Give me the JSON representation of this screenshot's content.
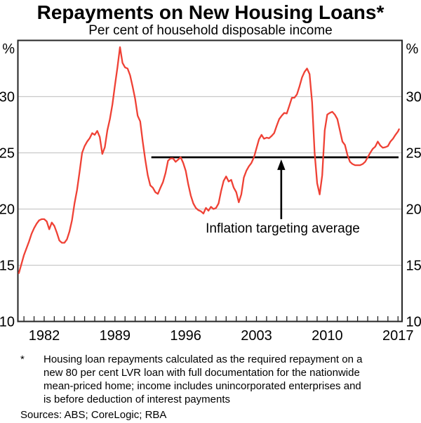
{
  "chart_data": {
    "type": "line",
    "title": "Repayments on New Housing Loans*",
    "subtitle": "Per cent of household disposable income",
    "unit_label": "%",
    "ylim": [
      10,
      35
    ],
    "xlim": [
      1979.4,
      2017.4
    ],
    "y_ticks": [
      10,
      15,
      20,
      25,
      30
    ],
    "gridlines": [
      15,
      20,
      25,
      30
    ],
    "x_labeled_years": [
      1982,
      1989,
      1996,
      2003,
      2010,
      2017
    ],
    "x_minor_tick_start": 1980,
    "x_minor_tick_end": 2017,
    "grid_on": true,
    "legend_position": "none",
    "series": [
      {
        "name": "Repayments on new housing loans",
        "color": "#ef4135",
        "points": [
          [
            1979.5,
            14.3
          ],
          [
            1979.75,
            15.1
          ],
          [
            1980,
            15.9
          ],
          [
            1980.25,
            16.5
          ],
          [
            1980.5,
            17.1
          ],
          [
            1980.75,
            17.8
          ],
          [
            1981,
            18.3
          ],
          [
            1981.25,
            18.7
          ],
          [
            1981.5,
            19.0
          ],
          [
            1981.75,
            19.1
          ],
          [
            1982,
            19.1
          ],
          [
            1982.25,
            18.9
          ],
          [
            1982.5,
            18.2
          ],
          [
            1982.75,
            18.8
          ],
          [
            1983,
            18.5
          ],
          [
            1983.25,
            17.9
          ],
          [
            1983.5,
            17.2
          ],
          [
            1983.75,
            17.0
          ],
          [
            1984,
            17.0
          ],
          [
            1984.25,
            17.3
          ],
          [
            1984.5,
            18.0
          ],
          [
            1984.75,
            19.0
          ],
          [
            1985,
            20.5
          ],
          [
            1985.25,
            21.7
          ],
          [
            1985.5,
            23.3
          ],
          [
            1985.75,
            25.0
          ],
          [
            1986,
            25.6
          ],
          [
            1986.25,
            26.0
          ],
          [
            1986.5,
            26.3
          ],
          [
            1986.75,
            26.75
          ],
          [
            1987,
            26.6
          ],
          [
            1987.25,
            26.95
          ],
          [
            1987.5,
            26.4
          ],
          [
            1987.75,
            24.9
          ],
          [
            1988,
            25.5
          ],
          [
            1988.25,
            27.0
          ],
          [
            1988.5,
            28.0
          ],
          [
            1988.75,
            29.3
          ],
          [
            1989,
            31.0
          ],
          [
            1989.25,
            32.6
          ],
          [
            1989.5,
            34.4
          ],
          [
            1989.75,
            33.0
          ],
          [
            1990,
            32.6
          ],
          [
            1990.25,
            32.5
          ],
          [
            1990.5,
            31.9
          ],
          [
            1990.75,
            30.9
          ],
          [
            1991,
            29.8
          ],
          [
            1991.25,
            28.3
          ],
          [
            1991.5,
            27.8
          ],
          [
            1991.75,
            26.0
          ],
          [
            1992,
            24.4
          ],
          [
            1992.25,
            23.0
          ],
          [
            1992.5,
            22.1
          ],
          [
            1992.75,
            21.9
          ],
          [
            1993,
            21.5
          ],
          [
            1993.25,
            21.35
          ],
          [
            1993.5,
            21.9
          ],
          [
            1993.75,
            22.4
          ],
          [
            1994,
            23.2
          ],
          [
            1994.25,
            24.3
          ],
          [
            1994.5,
            24.5
          ],
          [
            1994.75,
            24.5
          ],
          [
            1995,
            24.2
          ],
          [
            1995.25,
            24.4
          ],
          [
            1995.5,
            24.6
          ],
          [
            1995.75,
            24.1
          ],
          [
            1996,
            23.4
          ],
          [
            1996.25,
            22.2
          ],
          [
            1996.5,
            21.2
          ],
          [
            1996.75,
            20.5
          ],
          [
            1997,
            20.1
          ],
          [
            1997.25,
            19.9
          ],
          [
            1997.5,
            19.8
          ],
          [
            1997.75,
            19.6
          ],
          [
            1998,
            20.1
          ],
          [
            1998.25,
            19.85
          ],
          [
            1998.5,
            20.2
          ],
          [
            1998.75,
            20.0
          ],
          [
            1999,
            20.1
          ],
          [
            1999.25,
            20.5
          ],
          [
            1999.5,
            21.6
          ],
          [
            1999.75,
            22.5
          ],
          [
            2000,
            22.9
          ],
          [
            2000.25,
            22.45
          ],
          [
            2000.5,
            22.6
          ],
          [
            2000.75,
            21.9
          ],
          [
            2001,
            21.5
          ],
          [
            2001.25,
            20.6
          ],
          [
            2001.5,
            21.3
          ],
          [
            2001.75,
            22.8
          ],
          [
            2002,
            23.4
          ],
          [
            2002.25,
            23.8
          ],
          [
            2002.5,
            24.1
          ],
          [
            2002.75,
            24.6
          ],
          [
            2003,
            25.4
          ],
          [
            2003.25,
            26.2
          ],
          [
            2003.5,
            26.6
          ],
          [
            2003.75,
            26.25
          ],
          [
            2004,
            26.35
          ],
          [
            2004.25,
            26.3
          ],
          [
            2004.5,
            26.5
          ],
          [
            2004.75,
            26.75
          ],
          [
            2005,
            27.4
          ],
          [
            2005.25,
            28.0
          ],
          [
            2005.5,
            28.3
          ],
          [
            2005.75,
            28.55
          ],
          [
            2006,
            28.5
          ],
          [
            2006.25,
            29.2
          ],
          [
            2006.5,
            29.9
          ],
          [
            2006.75,
            29.9
          ],
          [
            2007,
            30.2
          ],
          [
            2007.25,
            30.9
          ],
          [
            2007.5,
            31.7
          ],
          [
            2007.75,
            32.2
          ],
          [
            2008,
            32.5
          ],
          [
            2008.25,
            32.0
          ],
          [
            2008.5,
            29.5
          ],
          [
            2008.75,
            25.0
          ],
          [
            2009,
            22.3
          ],
          [
            2009.25,
            21.3
          ],
          [
            2009.5,
            23.0
          ],
          [
            2009.75,
            27.0
          ],
          [
            2010,
            28.4
          ],
          [
            2010.25,
            28.55
          ],
          [
            2010.5,
            28.65
          ],
          [
            2010.75,
            28.4
          ],
          [
            2011,
            28.0
          ],
          [
            2011.25,
            27.0
          ],
          [
            2011.5,
            26.0
          ],
          [
            2011.75,
            25.7
          ],
          [
            2012,
            24.8
          ],
          [
            2012.25,
            24.2
          ],
          [
            2012.5,
            24.0
          ],
          [
            2012.75,
            23.9
          ],
          [
            2013,
            23.9
          ],
          [
            2013.25,
            23.9
          ],
          [
            2013.5,
            24.0
          ],
          [
            2013.75,
            24.2
          ],
          [
            2014,
            24.6
          ],
          [
            2014.25,
            25.0
          ],
          [
            2014.5,
            25.35
          ],
          [
            2014.75,
            25.55
          ],
          [
            2015,
            26.0
          ],
          [
            2015.25,
            25.65
          ],
          [
            2015.5,
            25.45
          ],
          [
            2015.75,
            25.5
          ],
          [
            2016,
            25.6
          ],
          [
            2016.25,
            26.0
          ],
          [
            2016.5,
            26.25
          ],
          [
            2016.75,
            26.6
          ],
          [
            2017,
            26.9
          ],
          [
            2017.1,
            27.1
          ]
        ]
      }
    ],
    "reference_line": {
      "label": "Inflation targeting average",
      "value": 24.6,
      "start_year": 1992.6,
      "end_year": 2017.05,
      "color": "#000000"
    },
    "annotation": {
      "text": "Inflation targeting average",
      "arrow_x_year": 2005.45,
      "arrow_tail_value": 19.1,
      "text_x_year": 2005.6,
      "color": "#000000"
    }
  },
  "footnote": {
    "marker": "*",
    "lines": [
      "Housing loan repayments calculated as the required repayment on a",
      "new 80 per cent LVR loan with full documentation for the nationwide",
      "mean-priced home; income includes unincorporated enterprises and",
      "is before deduction of interest payments"
    ]
  },
  "sources": "Sources: ABS; CoreLogic; RBA",
  "colors": {
    "series_red": "#ef4135",
    "gridline": "#c9c9c9",
    "frame": "#262626",
    "text": "#000000",
    "background": "#ffffff"
  }
}
